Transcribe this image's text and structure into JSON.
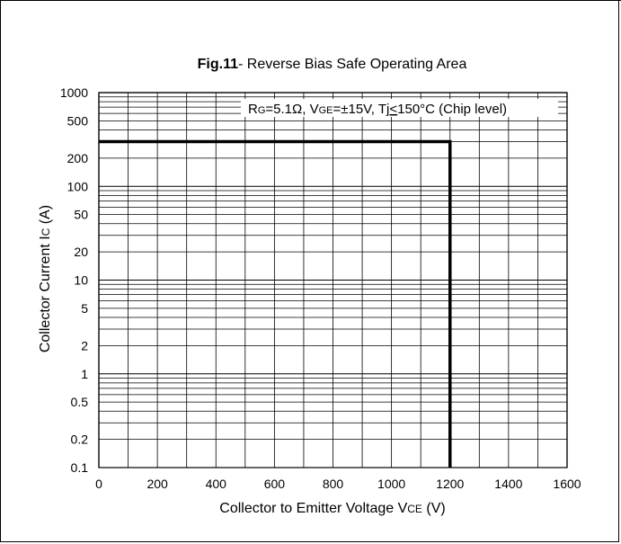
{
  "chart_data": {
    "type": "line",
    "title_bold": "Fig.11",
    "title_rest": "- Reverse Bias Safe Operating Area",
    "annotation": "RG=5.1Ω, VGE=±15V, Tj≤150°C (Chip level)",
    "annotation_parts": {
      "r": "R",
      "r_sub": "G",
      "r_val": "=5.1",
      "omega": "Ω",
      "v": ", V",
      "v_sub": "GE",
      "v_val": "=±15V, T",
      "tj_sub": "j",
      "tj_rel": "<",
      "tj_val": "150°C (Chip level)"
    },
    "xlabel_main": "Collector to Emitter Voltage  V",
    "xlabel_sub": "CE",
    "xlabel_unit": "  (V)",
    "ylabel_main": "Collector Current  I",
    "ylabel_sub": "C",
    "ylabel_unit": " (A)",
    "xlim": [
      0,
      1600
    ],
    "ylim": [
      0.1,
      1000
    ],
    "yscale": "log",
    "grid": true,
    "x_ticks": [
      "0",
      "200",
      "400",
      "600",
      "800",
      "1000",
      "1200",
      "1400",
      "1600"
    ],
    "y_ticks": [
      "0.1",
      "0.2",
      "0.5",
      "1",
      "2",
      "5",
      "10",
      "20",
      "50",
      "100",
      "200",
      "500",
      "1000"
    ],
    "series": [
      {
        "x": [
          0,
          1200,
          1200
        ],
        "y": [
          300,
          300,
          0.1
        ]
      }
    ]
  }
}
